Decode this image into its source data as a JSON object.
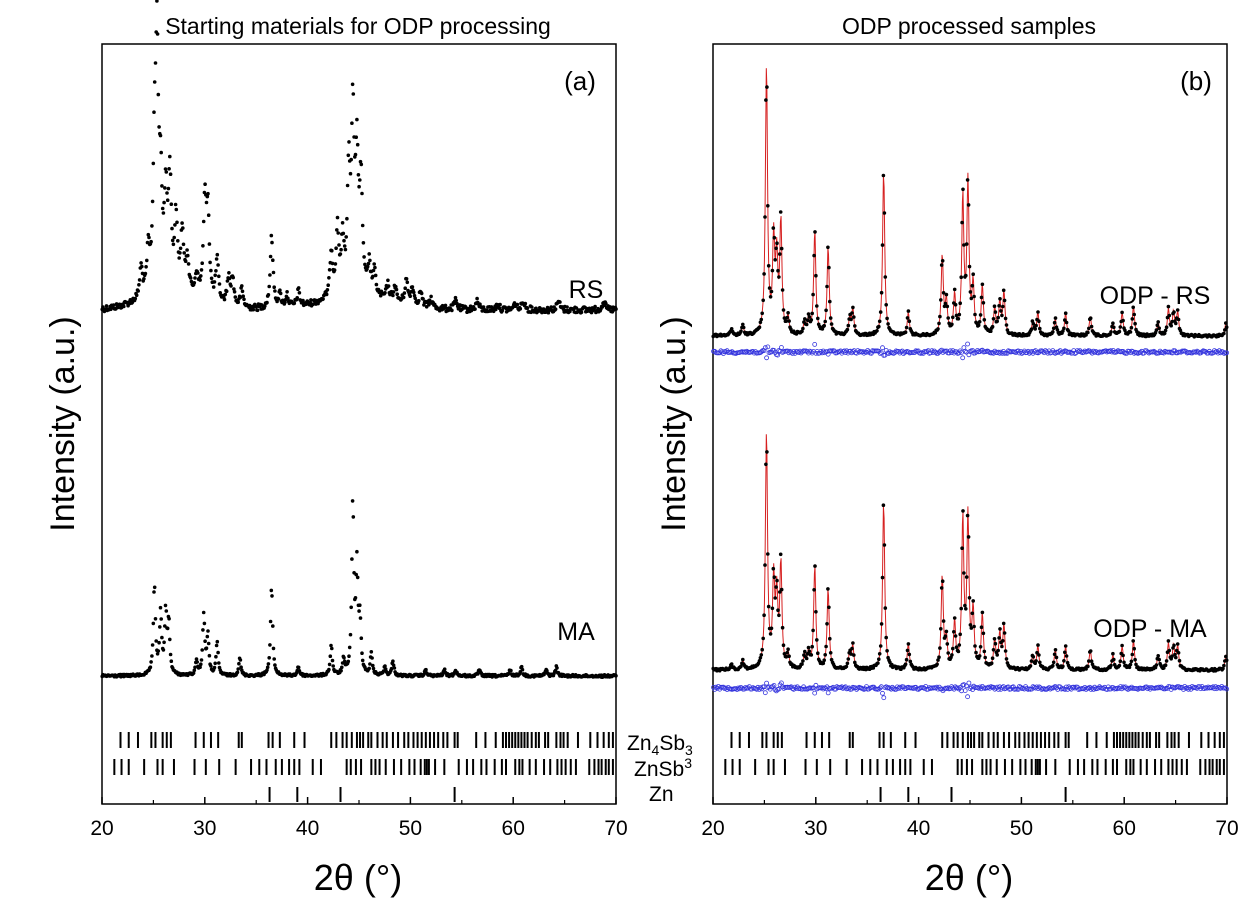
{
  "chart_data": [
    {
      "panel": "(a)",
      "type": "scatter",
      "title": "Starting materials for ODP processing",
      "xlabel": "2θ (°)",
      "ylabel": "Intensity (a.u.)",
      "xlim": [
        20,
        70
      ],
      "xticks": [
        "20",
        "30",
        "40",
        "50",
        "60",
        "70"
      ],
      "series": [
        {
          "name": "RS",
          "baseline": 0.22,
          "peaks": [
            [
              23.8,
              0.1
            ],
            [
              24.5,
              0.14
            ],
            [
              25.1,
              0.42
            ],
            [
              25.35,
              0.78
            ],
            [
              25.7,
              0.33
            ],
            [
              26.2,
              0.3
            ],
            [
              26.6,
              0.38
            ],
            [
              27.2,
              0.24
            ],
            [
              27.8,
              0.2
            ],
            [
              28.3,
              0.12
            ],
            [
              29.2,
              0.07
            ],
            [
              30.0,
              0.31
            ],
            [
              30.3,
              0.29
            ],
            [
              31.2,
              0.14
            ],
            [
              32.3,
              0.09
            ],
            [
              32.7,
              0.09
            ],
            [
              33.6,
              0.06
            ],
            [
              36.5,
              0.24
            ],
            [
              37.3,
              0.04
            ],
            [
              38.0,
              0.04
            ],
            [
              39.1,
              0.05
            ],
            [
              42.3,
              0.15
            ],
            [
              42.9,
              0.22
            ],
            [
              43.4,
              0.17
            ],
            [
              44.0,
              0.4
            ],
            [
              44.4,
              0.58
            ],
            [
              44.8,
              0.44
            ],
            [
              45.2,
              0.36
            ],
            [
              46.0,
              0.1
            ],
            [
              46.5,
              0.08
            ],
            [
              47.8,
              0.05
            ],
            [
              48.5,
              0.05
            ],
            [
              49.6,
              0.08
            ],
            [
              50.2,
              0.06
            ],
            [
              51.0,
              0.05
            ],
            [
              52.0,
              0.03
            ],
            [
              54.4,
              0.03
            ],
            [
              56.5,
              0.03
            ],
            [
              58.5,
              0.02
            ],
            [
              60.2,
              0.02
            ],
            [
              61.0,
              0.03
            ],
            [
              64.4,
              0.03
            ],
            [
              68.8,
              0.03
            ]
          ]
        },
        {
          "name": "MA",
          "baseline": 0.0,
          "peaks": [
            [
              25.1,
              0.3
            ],
            [
              25.7,
              0.2
            ],
            [
              26.2,
              0.2
            ],
            [
              26.5,
              0.17
            ],
            [
              29.2,
              0.05
            ],
            [
              29.9,
              0.2
            ],
            [
              30.3,
              0.13
            ],
            [
              31.2,
              0.11
            ],
            [
              33.4,
              0.06
            ],
            [
              36.5,
              0.3
            ],
            [
              39.1,
              0.03
            ],
            [
              42.3,
              0.1
            ],
            [
              43.5,
              0.05
            ],
            [
              44.4,
              0.57
            ],
            [
              44.8,
              0.34
            ],
            [
              45.1,
              0.17
            ],
            [
              46.2,
              0.07
            ],
            [
              47.5,
              0.03
            ],
            [
              48.3,
              0.05
            ],
            [
              51.5,
              0.02
            ],
            [
              53.3,
              0.02
            ],
            [
              54.4,
              0.02
            ],
            [
              56.7,
              0.02
            ],
            [
              59.7,
              0.02
            ],
            [
              60.8,
              0.03
            ],
            [
              63.2,
              0.02
            ],
            [
              64.2,
              0.03
            ]
          ]
        }
      ],
      "phase_markers": [
        {
          "name": "Zn4Sb3",
          "positions": [
            21.8,
            22.6,
            23.5,
            24.8,
            25.2,
            25.9,
            26.3,
            26.7,
            29.1,
            29.9,
            30.6,
            31.3,
            33.3,
            33.6,
            36.2,
            36.6,
            37.3,
            38.7,
            39.7,
            42.3,
            42.8,
            43.4,
            43.8,
            44.3,
            44.8,
            45.1,
            45.4,
            45.9,
            46.2,
            46.8,
            47.3,
            47.7,
            48.3,
            48.8,
            49.4,
            49.8,
            50.3,
            50.7,
            51.1,
            51.5,
            51.9,
            52.3,
            52.7,
            53.2,
            53.6,
            54.3,
            54.6,
            56.4,
            57.3,
            58.3,
            59.0,
            59.3,
            59.6,
            59.9,
            60.2,
            60.5,
            60.8,
            61.1,
            61.4,
            61.8,
            62.2,
            62.5,
            63.1,
            63.4,
            64.2,
            64.6,
            64.9,
            65.3,
            66.3,
            67.5,
            68.2,
            68.8,
            69.3,
            69.7
          ]
        },
        {
          "name": "ZnSb",
          "positions": [
            21.2,
            21.9,
            22.6,
            24.1,
            25.4,
            25.9,
            27.0,
            29.0,
            30.1,
            31.4,
            33.0,
            34.5,
            35.3,
            36.0,
            36.9,
            37.5,
            38.2,
            38.7,
            39.2,
            40.5,
            41.3,
            43.8,
            44.2,
            44.7,
            45.2,
            46.2,
            46.6,
            47.0,
            47.6,
            48.4,
            49.1,
            49.9,
            50.4,
            51.0,
            51.4,
            51.6,
            51.8,
            52.4,
            53.3,
            54.7,
            55.5,
            56.1,
            56.9,
            57.4,
            58.2,
            58.9,
            59.3,
            60.2,
            60.6,
            60.9,
            61.6,
            62.2,
            63.0,
            63.6,
            64.3,
            64.7,
            65.1,
            65.6,
            66.1,
            67.4,
            67.9,
            68.3,
            68.6,
            69.0,
            69.3,
            69.7
          ]
        },
        {
          "name": "Zn",
          "positions": [
            36.3,
            39.0,
            43.2,
            54.3
          ]
        }
      ]
    },
    {
      "panel": "(b)",
      "type": "scatter",
      "title": "ODP processed samples",
      "xlabel": "2θ (°)",
      "ylabel": "Intensity (a.u.)",
      "xlim": [
        20,
        70
      ],
      "xticks": [
        "20",
        "30",
        "40",
        "50",
        "60",
        "70"
      ],
      "series": [
        {
          "name": "ODP - RS",
          "baseline": 0.0,
          "peaks": [
            [
              21.8,
              0.02
            ],
            [
              22.9,
              0.03
            ],
            [
              25.2,
              0.82
            ],
            [
              25.9,
              0.28
            ],
            [
              26.2,
              0.22
            ],
            [
              26.6,
              0.34
            ],
            [
              27.3,
              0.05
            ],
            [
              28.9,
              0.04
            ],
            [
              29.3,
              0.05
            ],
            [
              29.9,
              0.32
            ],
            [
              31.2,
              0.27
            ],
            [
              33.3,
              0.05
            ],
            [
              33.6,
              0.08
            ],
            [
              36.6,
              0.5
            ],
            [
              39.0,
              0.07
            ],
            [
              42.3,
              0.24
            ],
            [
              42.7,
              0.1
            ],
            [
              43.5,
              0.12
            ],
            [
              44.3,
              0.42
            ],
            [
              44.8,
              0.46
            ],
            [
              45.3,
              0.15
            ],
            [
              46.2,
              0.15
            ],
            [
              47.4,
              0.08
            ],
            [
              47.9,
              0.1
            ],
            [
              48.3,
              0.13
            ],
            [
              51.1,
              0.04
            ],
            [
              51.6,
              0.07
            ],
            [
              53.3,
              0.05
            ],
            [
              54.3,
              0.07
            ],
            [
              56.7,
              0.06
            ],
            [
              58.9,
              0.04
            ],
            [
              59.8,
              0.07
            ],
            [
              60.9,
              0.09
            ],
            [
              63.3,
              0.04
            ],
            [
              64.3,
              0.08
            ],
            [
              64.8,
              0.07
            ],
            [
              65.2,
              0.07
            ],
            [
              69.9,
              0.04
            ]
          ]
        },
        {
          "name": "ODP - MA",
          "baseline": 0.0,
          "peaks": [
            [
              21.8,
              0.02
            ],
            [
              22.9,
              0.03
            ],
            [
              25.2,
              0.82
            ],
            [
              25.9,
              0.3
            ],
            [
              26.2,
              0.24
            ],
            [
              26.6,
              0.36
            ],
            [
              27.3,
              0.05
            ],
            [
              28.9,
              0.05
            ],
            [
              29.3,
              0.06
            ],
            [
              29.9,
              0.36
            ],
            [
              31.2,
              0.28
            ],
            [
              33.3,
              0.06
            ],
            [
              33.6,
              0.08
            ],
            [
              36.6,
              0.58
            ],
            [
              39.0,
              0.09
            ],
            [
              42.3,
              0.32
            ],
            [
              42.7,
              0.1
            ],
            [
              43.5,
              0.16
            ],
            [
              44.3,
              0.52
            ],
            [
              44.8,
              0.52
            ],
            [
              45.3,
              0.2
            ],
            [
              46.2,
              0.19
            ],
            [
              47.4,
              0.1
            ],
            [
              47.9,
              0.12
            ],
            [
              48.3,
              0.15
            ],
            [
              51.1,
              0.05
            ],
            [
              51.6,
              0.08
            ],
            [
              53.3,
              0.07
            ],
            [
              54.3,
              0.08
            ],
            [
              56.7,
              0.07
            ],
            [
              58.9,
              0.05
            ],
            [
              59.8,
              0.08
            ],
            [
              60.9,
              0.1
            ],
            [
              63.3,
              0.05
            ],
            [
              64.3,
              0.09
            ],
            [
              64.8,
              0.08
            ],
            [
              65.2,
              0.08
            ],
            [
              69.9,
              0.05
            ]
          ]
        }
      ],
      "phase_markers": [
        {
          "name": "Zn4Sb3",
          "positions": [
            21.8,
            22.6,
            23.5,
            24.8,
            25.2,
            25.9,
            26.3,
            26.7,
            29.1,
            29.9,
            30.6,
            31.3,
            33.3,
            33.6,
            36.2,
            36.6,
            37.3,
            38.7,
            39.7,
            42.3,
            42.8,
            43.4,
            43.8,
            44.3,
            44.8,
            45.1,
            45.4,
            45.9,
            46.2,
            46.8,
            47.3,
            47.7,
            48.3,
            48.8,
            49.4,
            49.8,
            50.3,
            50.7,
            51.1,
            51.5,
            51.9,
            52.3,
            52.7,
            53.2,
            53.6,
            54.3,
            54.6,
            56.4,
            57.3,
            58.3,
            59.0,
            59.3,
            59.6,
            59.9,
            60.2,
            60.5,
            60.8,
            61.1,
            61.4,
            61.8,
            62.2,
            62.5,
            63.1,
            63.4,
            64.2,
            64.6,
            64.9,
            65.3,
            66.3,
            67.5,
            68.2,
            68.8,
            69.3,
            69.7
          ]
        },
        {
          "name": "ZnSb",
          "positions": [
            21.2,
            21.9,
            22.6,
            24.1,
            25.4,
            25.9,
            27.0,
            29.0,
            30.1,
            31.4,
            33.0,
            34.5,
            35.3,
            36.0,
            36.9,
            37.5,
            38.2,
            38.7,
            39.2,
            40.5,
            41.3,
            43.8,
            44.2,
            44.7,
            45.2,
            46.2,
            46.6,
            47.0,
            47.6,
            48.4,
            49.1,
            49.9,
            50.4,
            51.0,
            51.4,
            51.6,
            51.8,
            52.4,
            53.3,
            54.7,
            55.5,
            56.1,
            56.9,
            57.4,
            58.2,
            58.9,
            59.3,
            60.2,
            60.6,
            60.9,
            61.6,
            62.2,
            63.0,
            63.6,
            64.3,
            64.7,
            65.1,
            65.6,
            66.1,
            67.4,
            67.9,
            68.3,
            68.6,
            69.0,
            69.3,
            69.7
          ]
        },
        {
          "name": "Zn",
          "positions": [
            36.3,
            39.0,
            43.2,
            54.3
          ]
        }
      ]
    }
  ],
  "phase_labels": {
    "zn4sb3_main": "Zn",
    "zn4sb3_sub1": "4",
    "zn4sb3_mid": "Sb",
    "zn4sb3_sub2": "3",
    "znsb_main": "ZnSb",
    "znsb_sup": "3",
    "zn": "Zn"
  },
  "colors": {
    "observed": "#000000",
    "calculated": "#d62020",
    "difference": "#3333dd"
  }
}
